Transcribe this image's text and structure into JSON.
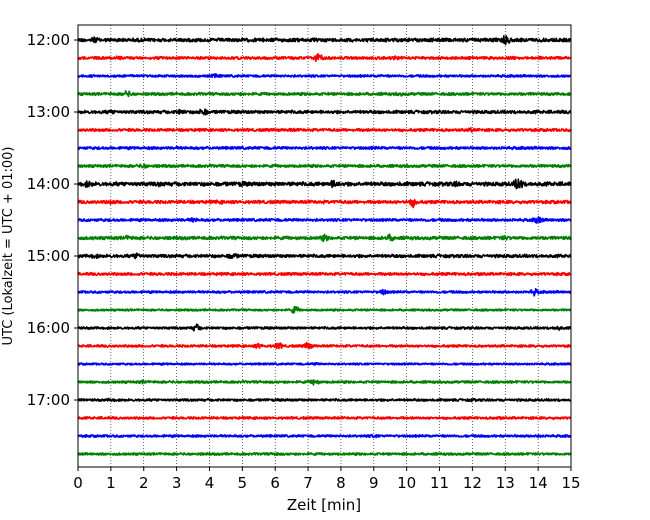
{
  "chart_data": {
    "type": "line",
    "title": "",
    "xlabel": "Zeit  [min]",
    "ylabel": "UTC (Lokalzeit = UTC + 01:00)",
    "xlim": [
      0,
      15
    ],
    "x_ticks": [
      0,
      1,
      2,
      3,
      4,
      5,
      6,
      7,
      8,
      9,
      10,
      11,
      12,
      13,
      14,
      15
    ],
    "x_tick_labels": [
      "0",
      "1",
      "2",
      "3",
      "4",
      "5",
      "6",
      "7",
      "8",
      "9",
      "10",
      "11",
      "12",
      "13",
      "14",
      "15"
    ],
    "y_tick_labels": [
      "12:00",
      "13:00",
      "14:00",
      "15:00",
      "16:00",
      "17:00"
    ],
    "grid": "vertical dotted",
    "row_colors": [
      "#000000",
      "#ff0000",
      "#0000ff",
      "#008000"
    ],
    "rows": [
      {
        "time": "12:00",
        "color": "#000000",
        "noise": 0.9,
        "events": [
          {
            "x": 0.5,
            "amp": 1.6
          },
          {
            "x": 5.6,
            "amp": 1.0
          },
          {
            "x": 8.0,
            "amp": 0.9
          },
          {
            "x": 13.0,
            "amp": 3.2
          }
        ]
      },
      {
        "time": "12:15",
        "color": "#ff0000",
        "noise": 0.7,
        "events": [
          {
            "x": 1.2,
            "amp": 1.3
          },
          {
            "x": 7.3,
            "amp": 2.6
          },
          {
            "x": 9.7,
            "amp": 1.2
          }
        ]
      },
      {
        "time": "12:30",
        "color": "#0000ff",
        "noise": 0.6,
        "events": [
          {
            "x": 4.2,
            "amp": 1.3
          },
          {
            "x": 9.2,
            "amp": 0.8
          }
        ]
      },
      {
        "time": "12:45",
        "color": "#008000",
        "noise": 0.7,
        "events": [
          {
            "x": 1.5,
            "amp": 1.7
          },
          {
            "x": 4.9,
            "amp": 0.9
          },
          {
            "x": 9.8,
            "amp": 1.0
          }
        ]
      },
      {
        "time": "13:00",
        "color": "#000000",
        "noise": 0.8,
        "events": [
          {
            "x": 1.0,
            "amp": 1.2
          },
          {
            "x": 3.1,
            "amp": 1.5
          },
          {
            "x": 3.8,
            "amp": 2.2
          }
        ]
      },
      {
        "time": "13:15",
        "color": "#ff0000",
        "noise": 0.7,
        "events": [
          {
            "x": 6.5,
            "amp": 0.9
          },
          {
            "x": 12.0,
            "amp": 1.2
          }
        ]
      },
      {
        "time": "13:30",
        "color": "#0000ff",
        "noise": 0.7,
        "events": [
          {
            "x": 3.0,
            "amp": 0.8
          },
          {
            "x": 9.0,
            "amp": 0.8
          }
        ]
      },
      {
        "time": "13:45",
        "color": "#008000",
        "noise": 0.7,
        "events": [
          {
            "x": 2.0,
            "amp": 1.3
          },
          {
            "x": 10.0,
            "amp": 0.8
          }
        ]
      },
      {
        "time": "14:00",
        "color": "#000000",
        "noise": 1.0,
        "events": [
          {
            "x": 0.3,
            "amp": 1.8
          },
          {
            "x": 2.5,
            "amp": 1.3
          },
          {
            "x": 5.0,
            "amp": 1.4
          },
          {
            "x": 7.8,
            "amp": 2.4
          },
          {
            "x": 11.5,
            "amp": 1.5
          },
          {
            "x": 13.4,
            "amp": 3.6
          }
        ]
      },
      {
        "time": "14:15",
        "color": "#ff0000",
        "noise": 0.8,
        "events": [
          {
            "x": 1.0,
            "amp": 1.2
          },
          {
            "x": 4.3,
            "amp": 1.0
          },
          {
            "x": 10.2,
            "amp": 2.6
          }
        ]
      },
      {
        "time": "14:30",
        "color": "#0000ff",
        "noise": 0.7,
        "events": [
          {
            "x": 3.5,
            "amp": 1.3
          },
          {
            "x": 14.0,
            "amp": 2.0
          }
        ]
      },
      {
        "time": "14:45",
        "color": "#008000",
        "noise": 0.8,
        "events": [
          {
            "x": 1.5,
            "amp": 1.3
          },
          {
            "x": 7.5,
            "amp": 1.8
          },
          {
            "x": 9.5,
            "amp": 1.9
          },
          {
            "x": 13.0,
            "amp": 1.3
          }
        ]
      },
      {
        "time": "15:00",
        "color": "#000000",
        "noise": 0.8,
        "events": [
          {
            "x": 0.5,
            "amp": 1.3
          },
          {
            "x": 1.8,
            "amp": 1.8
          },
          {
            "x": 4.7,
            "amp": 1.8
          }
        ]
      },
      {
        "time": "15:15",
        "color": "#ff0000",
        "noise": 0.7,
        "events": [
          {
            "x": 3.0,
            "amp": 0.8
          },
          {
            "x": 12.2,
            "amp": 1.0
          }
        ]
      },
      {
        "time": "15:30",
        "color": "#0000ff",
        "noise": 0.6,
        "events": [
          {
            "x": 9.3,
            "amp": 1.5
          },
          {
            "x": 13.9,
            "amp": 1.8
          }
        ]
      },
      {
        "time": "15:45",
        "color": "#008000",
        "noise": 0.5,
        "events": [
          {
            "x": 6.6,
            "amp": 2.0
          }
        ]
      },
      {
        "time": "16:00",
        "color": "#000000",
        "noise": 0.6,
        "events": [
          {
            "x": 3.6,
            "amp": 2.0
          },
          {
            "x": 14.6,
            "amp": 1.3
          }
        ]
      },
      {
        "time": "16:15",
        "color": "#ff0000",
        "noise": 0.6,
        "events": [
          {
            "x": 5.5,
            "amp": 1.5
          },
          {
            "x": 6.1,
            "amp": 1.8
          },
          {
            "x": 7.0,
            "amp": 2.0
          }
        ]
      },
      {
        "time": "16:30",
        "color": "#0000ff",
        "noise": 0.5,
        "events": [
          {
            "x": 7.2,
            "amp": 0.8
          }
        ]
      },
      {
        "time": "16:45",
        "color": "#008000",
        "noise": 0.6,
        "events": [
          {
            "x": 2.0,
            "amp": 1.0
          },
          {
            "x": 7.2,
            "amp": 1.8
          }
        ]
      },
      {
        "time": "17:00",
        "color": "#000000",
        "noise": 0.6,
        "events": [
          {
            "x": 1.0,
            "amp": 0.9
          },
          {
            "x": 12.0,
            "amp": 0.8
          }
        ]
      },
      {
        "time": "17:15",
        "color": "#ff0000",
        "noise": 0.6,
        "events": [
          {
            "x": 12.8,
            "amp": 1.0
          }
        ]
      },
      {
        "time": "17:30",
        "color": "#0000ff",
        "noise": 0.6,
        "events": [
          {
            "x": 9.0,
            "amp": 1.0
          },
          {
            "x": 14.0,
            "amp": 0.9
          }
        ]
      },
      {
        "time": "17:45",
        "color": "#008000",
        "noise": 0.6,
        "events": [
          {
            "x": 6.0,
            "amp": 0.9
          }
        ]
      }
    ]
  }
}
